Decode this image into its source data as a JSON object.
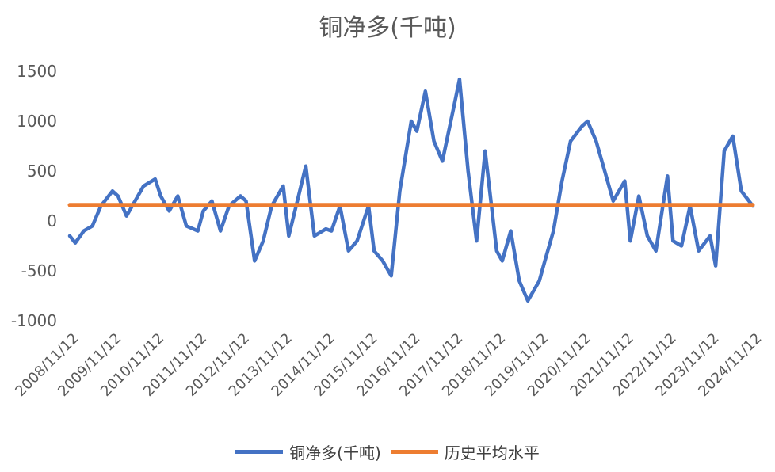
{
  "chart_data": {
    "type": "line",
    "title": "铜净多(千吨)",
    "xlabel": "",
    "ylabel": "",
    "ylim": [
      -1000,
      1500
    ],
    "yticks": [
      -1000,
      -500,
      0,
      500,
      1000,
      1500
    ],
    "x_tick_labels": [
      "2008/11/12",
      "2009/11/12",
      "2010/11/12",
      "2011/11/12",
      "2012/11/12",
      "2013/11/12",
      "2014/11/12",
      "2015/11/12",
      "2016/11/12",
      "2017/11/12",
      "2018/11/12",
      "2019/11/12",
      "2020/11/12",
      "2021/11/12",
      "2022/11/12",
      "2023/11/12",
      "2024/11/12"
    ],
    "grid": false,
    "legend_position": "bottom",
    "colors": {
      "net_long": "#4472C4",
      "hist_avg": "#ED7D31"
    },
    "series": [
      {
        "name": "铜净多(千吨)",
        "x": [
          2008.87,
          2009.0,
          2009.2,
          2009.4,
          2009.6,
          2009.87,
          2010.0,
          2010.2,
          2010.4,
          2010.6,
          2010.87,
          2011.0,
          2011.2,
          2011.4,
          2011.6,
          2011.87,
          2012.0,
          2012.2,
          2012.4,
          2012.6,
          2012.87,
          2013.0,
          2013.2,
          2013.4,
          2013.6,
          2013.87,
          2014.0,
          2014.2,
          2014.4,
          2014.6,
          2014.87,
          2015.0,
          2015.2,
          2015.4,
          2015.6,
          2015.87,
          2016.0,
          2016.2,
          2016.4,
          2016.6,
          2016.87,
          2017.0,
          2017.2,
          2017.4,
          2017.6,
          2017.87,
          2018.0,
          2018.2,
          2018.4,
          2018.6,
          2018.87,
          2019.0,
          2019.2,
          2019.4,
          2019.6,
          2019.87,
          2020.0,
          2020.2,
          2020.4,
          2020.6,
          2020.87,
          2021.0,
          2021.2,
          2021.4,
          2021.6,
          2021.87,
          2022.0,
          2022.2,
          2022.4,
          2022.6,
          2022.87,
          2023.0,
          2023.2,
          2023.4,
          2023.6,
          2023.87,
          2024.0,
          2024.2,
          2024.4,
          2024.6,
          2024.87
        ],
        "y": [
          -150,
          -220,
          -100,
          -50,
          150,
          300,
          250,
          50,
          200,
          350,
          420,
          250,
          100,
          250,
          -50,
          -100,
          100,
          200,
          -100,
          150,
          250,
          200,
          -400,
          -200,
          150,
          350,
          -150,
          200,
          550,
          -150,
          -80,
          -100,
          150,
          -300,
          -200,
          150,
          -300,
          -400,
          -550,
          300,
          1000,
          900,
          1300,
          800,
          600,
          1150,
          1420,
          500,
          -200,
          700,
          -300,
          -400,
          -100,
          -600,
          -800,
          -600,
          -400,
          -100,
          400,
          800,
          950,
          1000,
          800,
          500,
          200,
          400,
          -200,
          250,
          -150,
          -300,
          450,
          -200,
          -250,
          150,
          -300,
          -150,
          -450,
          700,
          850,
          300,
          150
        ]
      },
      {
        "name": "历史平均水平",
        "x": [
          2008.87,
          2024.87
        ],
        "y": [
          160,
          160
        ]
      }
    ]
  }
}
